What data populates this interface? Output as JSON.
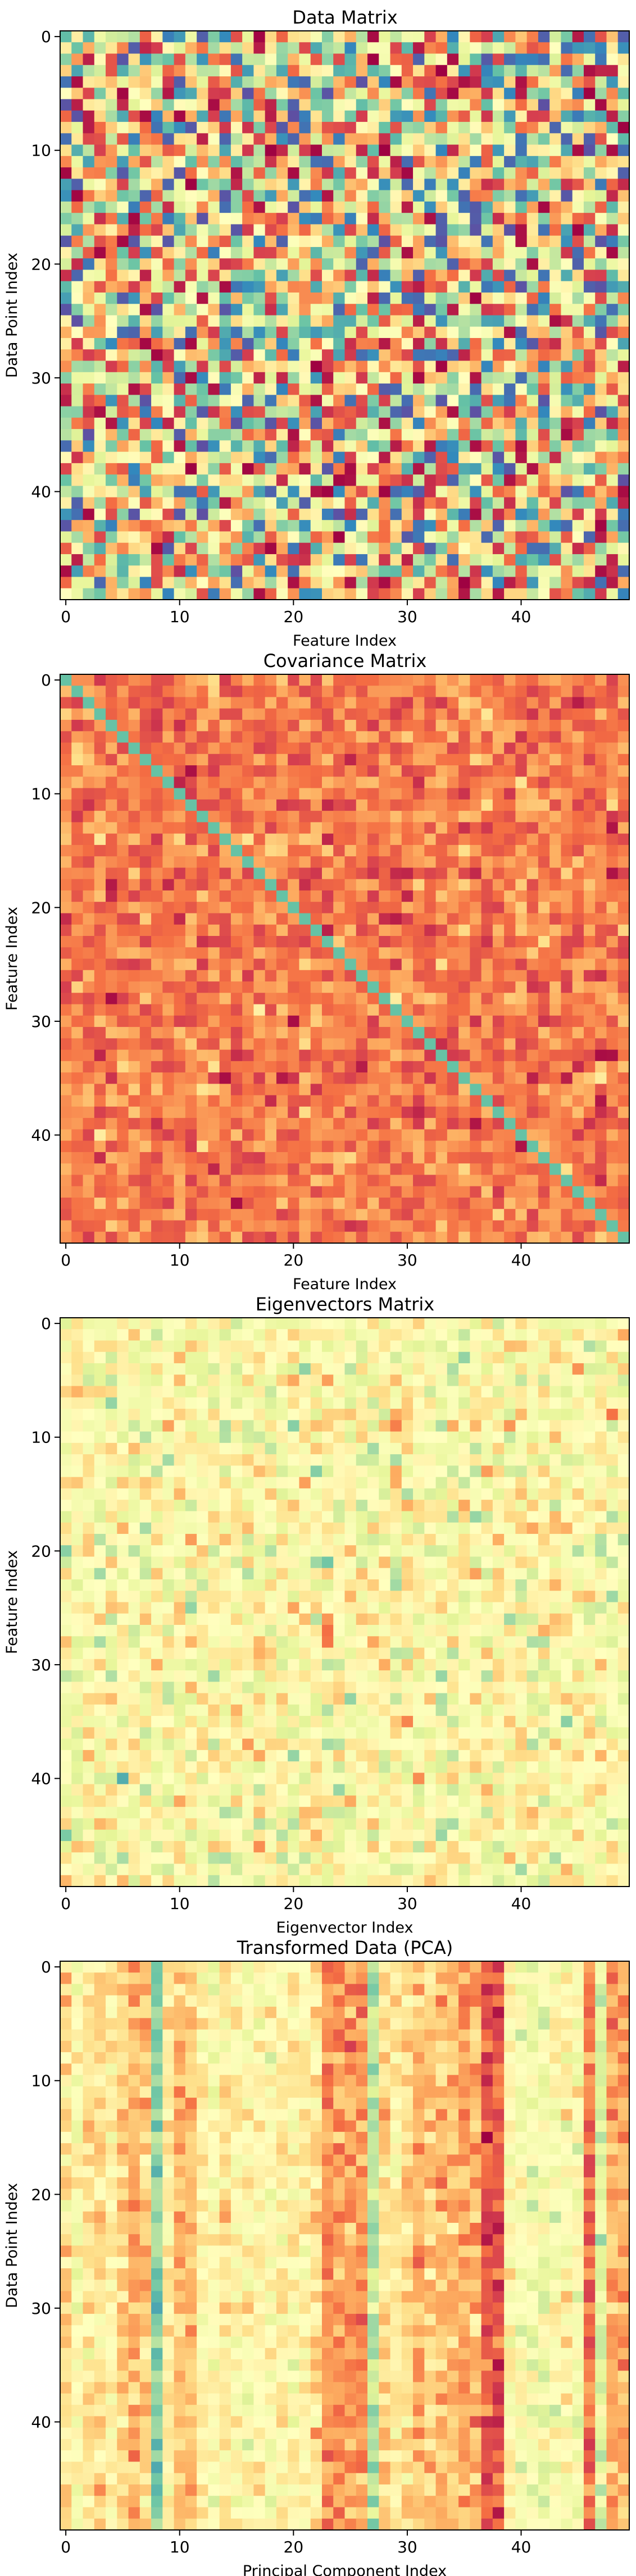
{
  "chart_data": [
    {
      "type": "heatmap",
      "title": "Data Matrix",
      "xlabel": "Feature Index",
      "ylabel": "Data Point Index",
      "rows": 50,
      "cols": 50,
      "xticks": [
        0,
        10,
        20,
        30,
        40
      ],
      "yticks": [
        0,
        10,
        20,
        30,
        40
      ],
      "colormap": "Spectral",
      "pattern": "random",
      "values": []
    },
    {
      "type": "heatmap",
      "title": "Covariance Matrix",
      "xlabel": "Feature Index",
      "ylabel": "Feature Index",
      "rows": 50,
      "cols": 50,
      "xticks": [
        0,
        10,
        20,
        30,
        40
      ],
      "yticks": [
        0,
        10,
        20,
        30,
        40
      ],
      "colormap": "Spectral",
      "pattern": "covariance",
      "values": []
    },
    {
      "type": "heatmap",
      "title": "Eigenvectors Matrix",
      "xlabel": "Eigenvector Index",
      "ylabel": "Feature Index",
      "rows": 50,
      "cols": 50,
      "xticks": [
        0,
        10,
        20,
        30,
        40
      ],
      "yticks": [
        0,
        10,
        20,
        30,
        40
      ],
      "colormap": "Spectral",
      "pattern": "eigen",
      "values": []
    },
    {
      "type": "heatmap",
      "title": "Transformed Data (PCA)",
      "xlabel": "Principal Component Index",
      "ylabel": "Data Point Index",
      "rows": 50,
      "cols": 50,
      "xticks": [
        0,
        10,
        20,
        30,
        40
      ],
      "yticks": [
        0,
        10,
        20,
        30,
        40
      ],
      "colormap": "Spectral",
      "pattern": "pca",
      "values": []
    }
  ],
  "colors": {
    "spectral": [
      "#9e0142",
      "#d53e4f",
      "#f46d43",
      "#fdae61",
      "#fee08b",
      "#ffffbf",
      "#e6f598",
      "#abdda4",
      "#66c2a5",
      "#3288bd",
      "#5e4fa2"
    ]
  }
}
